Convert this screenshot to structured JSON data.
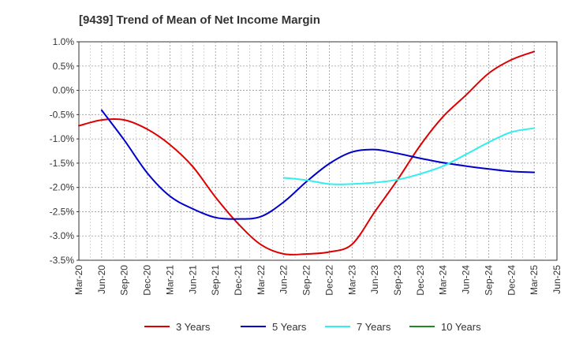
{
  "chart_data": {
    "type": "line",
    "title": "[9439]  Trend of Mean of Net Income Margin",
    "xlabel": "",
    "ylabel": "",
    "ylim": [
      -3.5,
      1.0
    ],
    "y_ticks": [
      "1.0%",
      "0.5%",
      "0.0%",
      "-0.5%",
      "-1.0%",
      "-1.5%",
      "-2.0%",
      "-2.5%",
      "-3.0%",
      "-3.5%"
    ],
    "y_tick_values": [
      1.0,
      0.5,
      0.0,
      -0.5,
      -1.0,
      -1.5,
      -2.0,
      -2.5,
      -3.0,
      -3.5
    ],
    "categories": [
      "Mar-20",
      "Jun-20",
      "Sep-20",
      "Dec-20",
      "Mar-21",
      "Jun-21",
      "Sep-21",
      "Dec-21",
      "Mar-22",
      "Jun-22",
      "Sep-22",
      "Dec-22",
      "Mar-23",
      "Jun-23",
      "Sep-23",
      "Dec-23",
      "Mar-24",
      "Jun-24",
      "Sep-24",
      "Dec-24",
      "Mar-25",
      "Jun-25"
    ],
    "grid": true,
    "legend_position": "bottom",
    "series": [
      {
        "name": "3 Years",
        "color": "#dd0000",
        "values": [
          -0.73,
          -0.61,
          -0.61,
          -0.8,
          -1.12,
          -1.57,
          -2.2,
          -2.75,
          -3.18,
          -3.37,
          -3.37,
          -3.33,
          -3.17,
          -2.5,
          -1.84,
          -1.13,
          -0.54,
          -0.1,
          0.35,
          0.63,
          0.8,
          null
        ]
      },
      {
        "name": "5 Years",
        "color": "#0000cc",
        "values": [
          null,
          -0.41,
          -1.03,
          -1.7,
          -2.18,
          -2.44,
          -2.62,
          -2.65,
          -2.6,
          -2.3,
          -1.88,
          -1.51,
          -1.27,
          -1.22,
          -1.3,
          -1.4,
          -1.49,
          -1.56,
          -1.62,
          -1.67,
          -1.69,
          null
        ]
      },
      {
        "name": "7 Years",
        "color": "#33eeee",
        "values": [
          null,
          null,
          null,
          null,
          null,
          null,
          null,
          null,
          null,
          -1.8,
          -1.85,
          -1.93,
          -1.93,
          -1.9,
          -1.84,
          -1.72,
          -1.56,
          -1.32,
          -1.07,
          -0.86,
          -0.78,
          null
        ]
      },
      {
        "name": "10 Years",
        "color": "#228822",
        "values": [
          null,
          null,
          null,
          null,
          null,
          null,
          null,
          null,
          null,
          null,
          null,
          null,
          null,
          null,
          null,
          null,
          null,
          null,
          null,
          null,
          null,
          null
        ]
      }
    ]
  }
}
